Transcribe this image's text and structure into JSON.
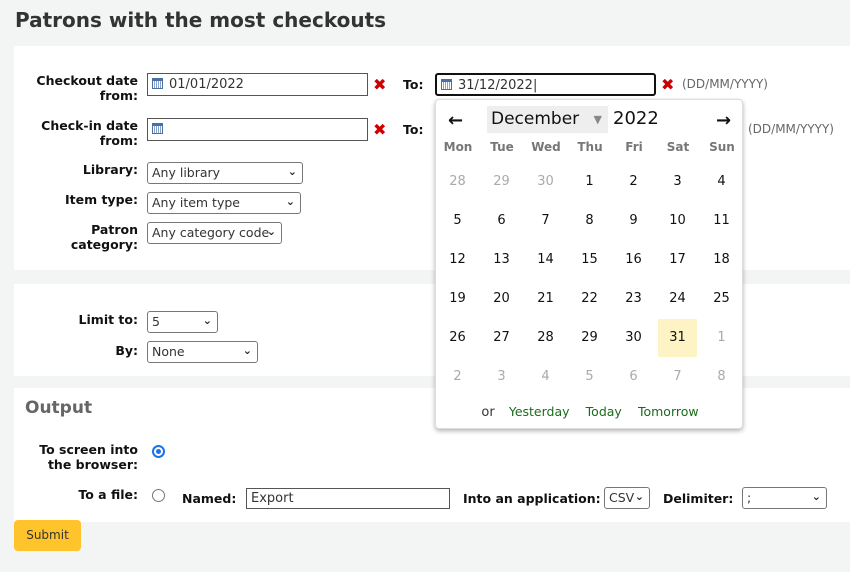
{
  "title": "Patrons with the most checkouts",
  "filters": {
    "checkout_from_label": "Checkout date from:",
    "checkout_from_value": "01/01/2022",
    "to_label": "To:",
    "checkout_to_value": "31/12/2022",
    "date_hint": "(DD/MM/YYYY)",
    "checkin_from_label": "Check-in date from:",
    "checkin_from_value": "",
    "checkin_hint": "(DD/MM/YYYY)",
    "library_label": "Library:",
    "library_value": "Any library",
    "itemtype_label": "Item type:",
    "itemtype_value": "Any item type",
    "category_label": "Patron category:",
    "category_value": "Any category code"
  },
  "limit": {
    "limit_label": "Limit to:",
    "limit_value": "5",
    "by_label": "By:",
    "by_value": "None"
  },
  "output": {
    "heading": "Output",
    "screen_label": "To screen into the browser:",
    "file_label": "To a file:",
    "named_label": "Named:",
    "named_value": "Export",
    "app_label": "Into an application:",
    "app_value": "CSV",
    "delim_label": "Delimiter:",
    "delim_value": ";",
    "screen_selected": true
  },
  "submit_label": "Submit",
  "calendar": {
    "month": "December",
    "year": "2022",
    "weekdays": [
      "Mon",
      "Tue",
      "Wed",
      "Thu",
      "Fri",
      "Sat",
      "Sun"
    ],
    "days": [
      [
        "28",
        1
      ],
      [
        "29",
        1
      ],
      [
        "30",
        1
      ],
      [
        "1",
        0
      ],
      [
        "2",
        0
      ],
      [
        "3",
        0
      ],
      [
        "4",
        0
      ],
      [
        "5",
        0
      ],
      [
        "6",
        0
      ],
      [
        "7",
        0
      ],
      [
        "8",
        0
      ],
      [
        "9",
        0
      ],
      [
        "10",
        0
      ],
      [
        "11",
        0
      ],
      [
        "12",
        0
      ],
      [
        "13",
        0
      ],
      [
        "14",
        0
      ],
      [
        "15",
        0
      ],
      [
        "16",
        0
      ],
      [
        "17",
        0
      ],
      [
        "18",
        0
      ],
      [
        "19",
        0
      ],
      [
        "20",
        0
      ],
      [
        "21",
        0
      ],
      [
        "22",
        0
      ],
      [
        "23",
        0
      ],
      [
        "24",
        0
      ],
      [
        "25",
        0
      ],
      [
        "26",
        0
      ],
      [
        "27",
        0
      ],
      [
        "28",
        0
      ],
      [
        "29",
        0
      ],
      [
        "30",
        0
      ],
      [
        "31",
        0
      ],
      [
        "1",
        1
      ],
      [
        "2",
        1
      ],
      [
        "3",
        1
      ],
      [
        "4",
        1
      ],
      [
        "5",
        1
      ],
      [
        "6",
        1
      ],
      [
        "7",
        1
      ],
      [
        "8",
        1
      ]
    ],
    "selected_day": "31",
    "or": "or",
    "yesterday": "Yesterday",
    "today": "Today",
    "tomorrow": "Tomorrow"
  }
}
